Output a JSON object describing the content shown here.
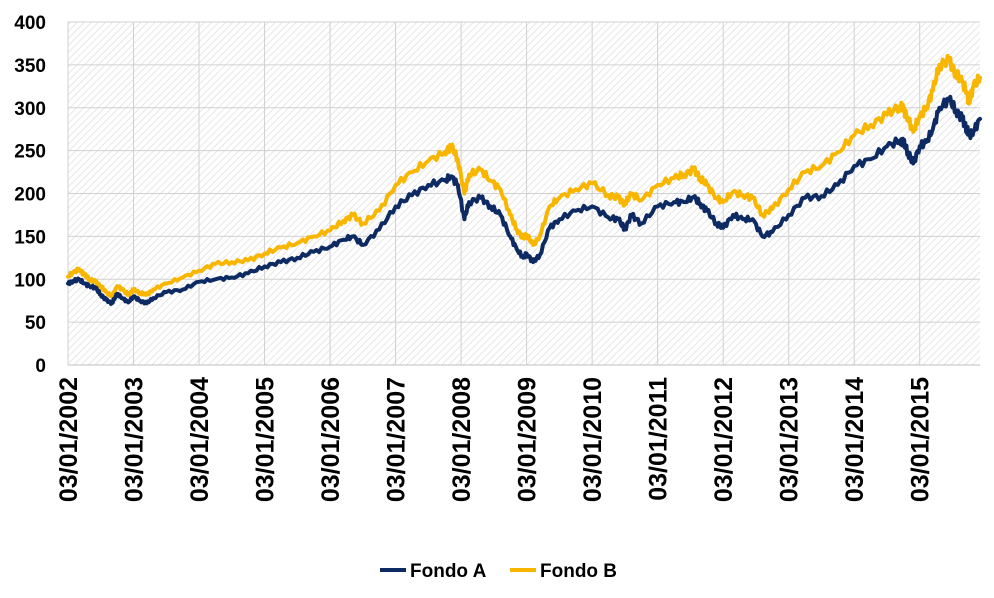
{
  "chart_data": {
    "type": "line",
    "title": "",
    "xlabel": "",
    "ylabel": "",
    "ylim": [
      0,
      400
    ],
    "yticks": [
      0,
      50,
      100,
      150,
      200,
      250,
      300,
      350,
      400
    ],
    "x_range": [
      2002.0,
      2015.92
    ],
    "x_tick_labels": [
      "03/01/2002",
      "03/01/2003",
      "03/01/2004",
      "03/01/2005",
      "03/01/2006",
      "03/01/2007",
      "03/01/2008",
      "03/01/2009",
      "03/01/2010",
      "03/01/2011",
      "03/01/2012",
      "03/01/2013",
      "03/01/2014",
      "03/01/2015"
    ],
    "x_tick_years": [
      2002,
      2003,
      2004,
      2005,
      2006,
      2007,
      2008,
      2009,
      2010,
      2011,
      2012,
      2013,
      2014,
      2015
    ],
    "grid": true,
    "legend_position": "bottom",
    "series": [
      {
        "name": "Fondo A",
        "color": "#0d2a63",
        "x": [
          2002.0,
          2002.08,
          2002.17,
          2002.25,
          2002.33,
          2002.42,
          2002.5,
          2002.58,
          2002.67,
          2002.75,
          2002.83,
          2002.92,
          2003.0,
          2003.1,
          2003.2,
          2003.3,
          2003.5,
          2003.75,
          2004.0,
          2004.25,
          2004.5,
          2004.75,
          2005.0,
          2005.25,
          2005.5,
          2005.75,
          2006.0,
          2006.2,
          2006.35,
          2006.5,
          2006.75,
          2007.0,
          2007.25,
          2007.5,
          2007.75,
          2007.85,
          2007.95,
          2008.05,
          2008.12,
          2008.3,
          2008.45,
          2008.6,
          2008.75,
          2008.85,
          2008.95,
          2009.0,
          2009.1,
          2009.2,
          2009.35,
          2009.5,
          2009.75,
          2010.0,
          2010.25,
          2010.4,
          2010.5,
          2010.6,
          2010.75,
          2011.0,
          2011.25,
          2011.4,
          2011.55,
          2011.65,
          2011.75,
          2011.9,
          2012.0,
          2012.15,
          2012.3,
          2012.45,
          2012.6,
          2012.75,
          2013.0,
          2013.25,
          2013.5,
          2013.75,
          2014.0,
          2014.25,
          2014.5,
          2014.7,
          2014.75,
          2014.82,
          2014.9,
          2015.0,
          2015.1,
          2015.2,
          2015.3,
          2015.45,
          2015.55,
          2015.65,
          2015.72,
          2015.75,
          2015.82,
          2015.92
        ],
        "values": [
          95,
          98,
          100,
          95,
          92,
          90,
          82,
          76,
          72,
          83,
          78,
          73,
          80,
          75,
          72,
          78,
          85,
          88,
          97,
          100,
          102,
          107,
          115,
          120,
          125,
          132,
          138,
          146,
          150,
          140,
          158,
          185,
          198,
          210,
          215,
          220,
          210,
          170,
          190,
          195,
          185,
          175,
          150,
          135,
          125,
          130,
          120,
          128,
          160,
          170,
          180,
          185,
          172,
          170,
          158,
          175,
          165,
          185,
          190,
          190,
          196,
          188,
          180,
          165,
          160,
          175,
          170,
          170,
          150,
          155,
          175,
          195,
          197,
          210,
          232,
          240,
          255,
          262,
          260,
          248,
          235,
          255,
          260,
          275,
          300,
          310,
          297,
          287,
          275,
          268,
          272,
          287
        ],
        "labels": []
      },
      {
        "name": "Fondo B",
        "color": "#f8b600",
        "x": [
          2002.0,
          2002.08,
          2002.17,
          2002.25,
          2002.33,
          2002.42,
          2002.5,
          2002.58,
          2002.67,
          2002.75,
          2002.83,
          2002.92,
          2003.0,
          2003.1,
          2003.2,
          2003.3,
          2003.5,
          2003.75,
          2004.0,
          2004.25,
          2004.5,
          2004.75,
          2005.0,
          2005.25,
          2005.5,
          2005.75,
          2006.0,
          2006.2,
          2006.35,
          2006.5,
          2006.75,
          2007.0,
          2007.25,
          2007.5,
          2007.75,
          2007.85,
          2007.95,
          2008.05,
          2008.12,
          2008.3,
          2008.45,
          2008.6,
          2008.75,
          2008.85,
          2008.95,
          2009.0,
          2009.1,
          2009.2,
          2009.35,
          2009.5,
          2009.75,
          2010.0,
          2010.25,
          2010.4,
          2010.5,
          2010.6,
          2010.75,
          2011.0,
          2011.25,
          2011.4,
          2011.55,
          2011.65,
          2011.75,
          2011.9,
          2012.0,
          2012.15,
          2012.3,
          2012.45,
          2012.6,
          2012.75,
          2013.0,
          2013.25,
          2013.5,
          2013.75,
          2014.0,
          2014.25,
          2014.5,
          2014.7,
          2014.75,
          2014.82,
          2014.9,
          2015.0,
          2015.1,
          2015.2,
          2015.3,
          2015.45,
          2015.55,
          2015.65,
          2015.72,
          2015.75,
          2015.82,
          2015.92
        ],
        "values": [
          103,
          108,
          112,
          105,
          100,
          97,
          92,
          85,
          80,
          92,
          88,
          82,
          88,
          84,
          82,
          88,
          95,
          102,
          110,
          118,
          120,
          122,
          130,
          137,
          142,
          150,
          157,
          168,
          175,
          165,
          180,
          210,
          225,
          238,
          248,
          255,
          240,
          200,
          222,
          228,
          215,
          205,
          175,
          158,
          148,
          152,
          140,
          150,
          185,
          195,
          205,
          212,
          198,
          195,
          188,
          200,
          192,
          210,
          218,
          222,
          228,
          218,
          210,
          195,
          190,
          202,
          198,
          195,
          175,
          182,
          205,
          225,
          232,
          248,
          268,
          280,
          292,
          302,
          298,
          288,
          272,
          290,
          300,
          320,
          350,
          355,
          340,
          330,
          318,
          305,
          325,
          335
        ],
        "labels": []
      }
    ]
  },
  "legend": {
    "items": [
      {
        "label": "Fondo A",
        "color": "#0d2a63"
      },
      {
        "label": "Fondo B",
        "color": "#f8b600"
      }
    ]
  }
}
